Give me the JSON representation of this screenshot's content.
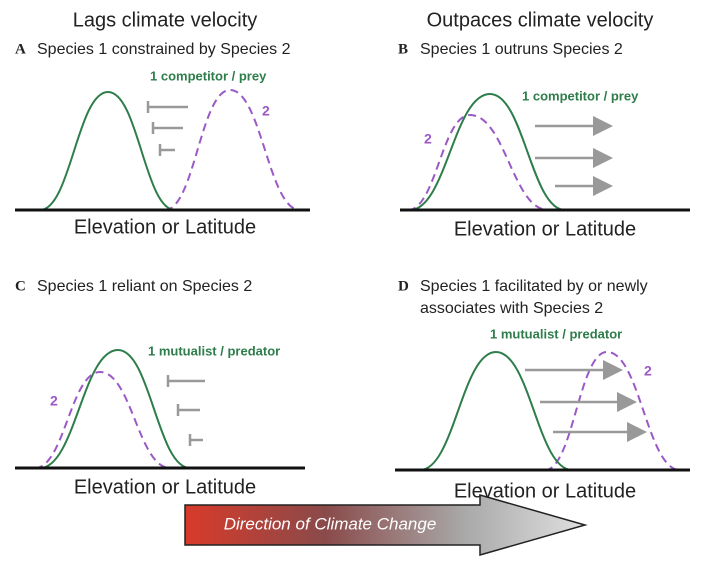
{
  "columns": [
    "Lags climate velocity",
    "Outpaces climate velocity"
  ],
  "panels": [
    {
      "letter": "A",
      "title_lines": [
        "Species 1 constrained by Species 2"
      ],
      "label1": "1 competitor / prey",
      "label2": "2",
      "axis": "Elevation or Latitude"
    },
    {
      "letter": "B",
      "title_lines": [
        "Species 1 outruns Species 2"
      ],
      "label1": "1 competitor / prey",
      "label2": "2",
      "axis": "Elevation or Latitude"
    },
    {
      "letter": "C",
      "title_lines": [
        "Species 1 reliant on Species 2"
      ],
      "label1": "1 mutualist / predator",
      "label2": "2",
      "axis": "Elevation or Latitude"
    },
    {
      "letter": "D",
      "title_lines": [
        "Species 1 facilitated by or newly",
        "associates with Species 2"
      ],
      "label1": "1 mutualist / predator",
      "label2": "2",
      "axis": "Elevation or Latitude"
    }
  ],
  "arrow": {
    "label": "Direction of Climate Change"
  }
}
